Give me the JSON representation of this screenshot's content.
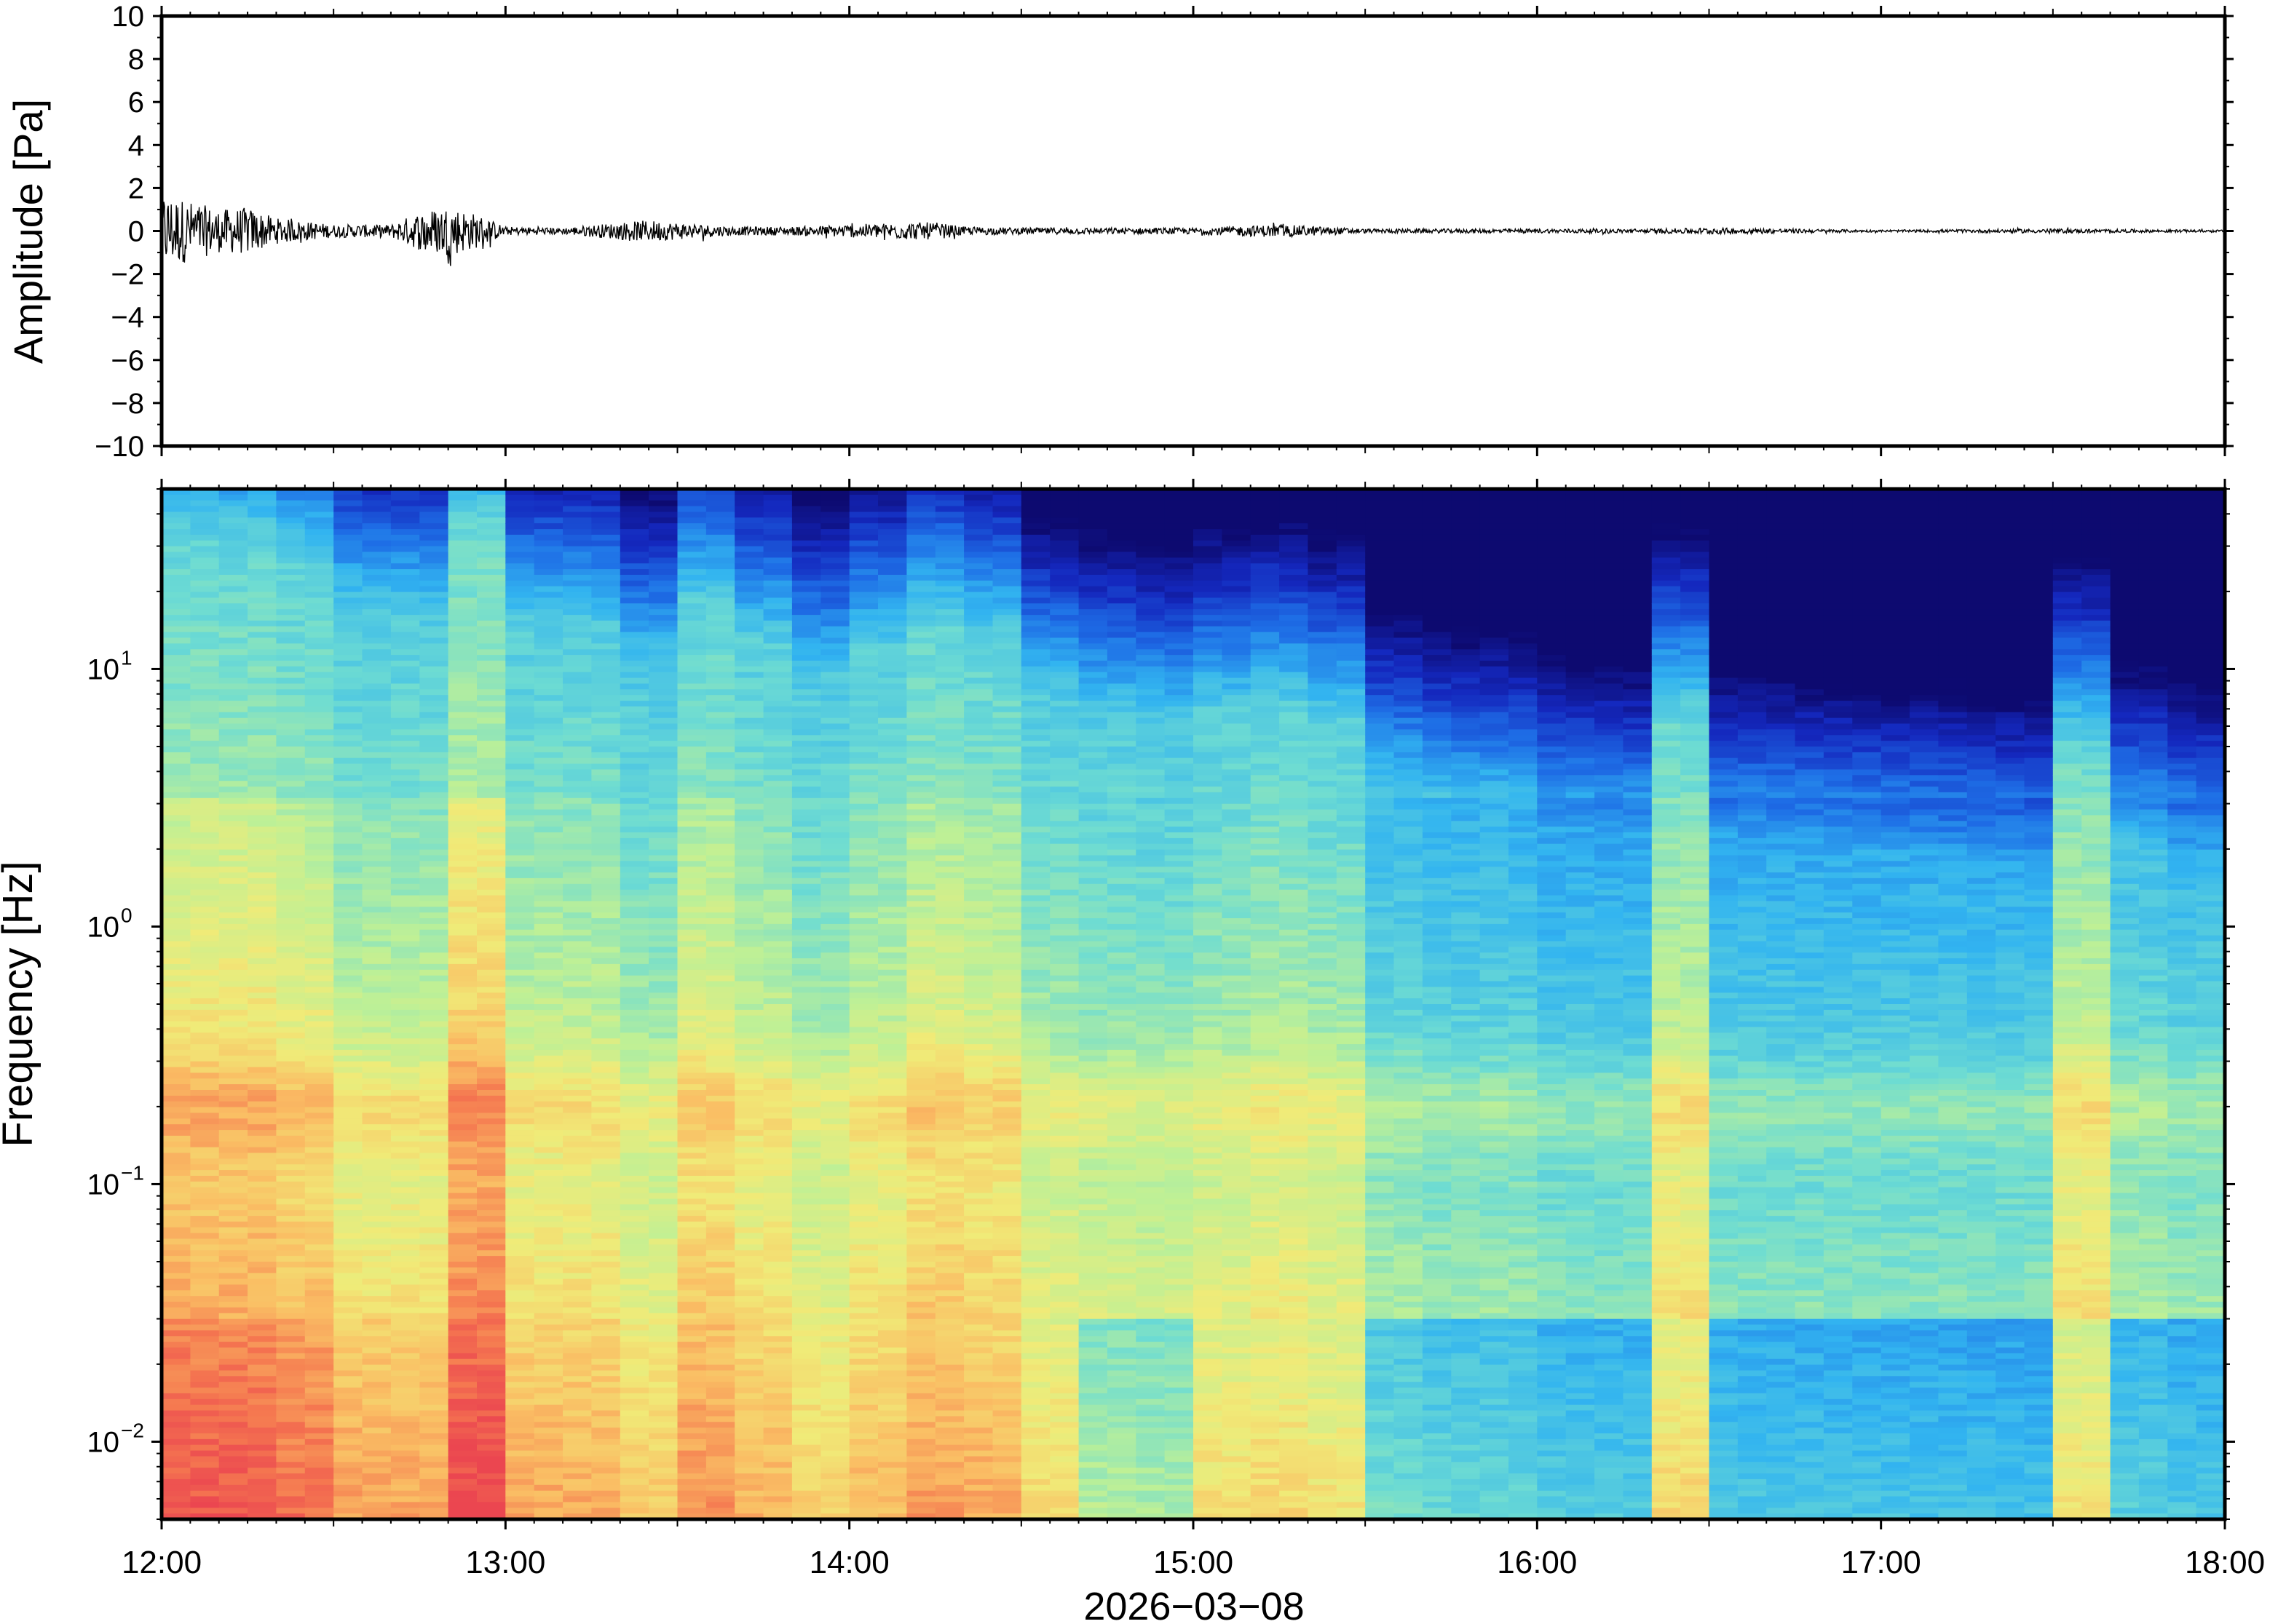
{
  "chart_data": [
    {
      "type": "line",
      "ylabel": "Amplitude [Pa]",
      "xlabel": "",
      "ylim": [
        -10,
        10
      ],
      "yticks": [
        10,
        8,
        6,
        4,
        2,
        0,
        -2,
        -4,
        -6,
        -8,
        -10
      ],
      "ytick_labels": [
        "10",
        "8",
        "6",
        "4",
        "2",
        "0",
        "−2",
        "−4",
        "−6",
        "−8",
        "−10"
      ],
      "xlim": [
        "12:00",
        "18:00"
      ],
      "units": "Pa",
      "grid": false,
      "series": [
        {
          "x": [
            "12:00",
            "12:10",
            "12:15",
            "12:20",
            "12:30",
            "12:40",
            "12:45",
            "12:50",
            "12:55",
            "13:00",
            "13:10",
            "13:20",
            "13:25",
            "13:30",
            "13:40",
            "13:50",
            "14:00",
            "14:10",
            "14:15",
            "14:20",
            "14:30",
            "15:00",
            "15:15",
            "15:30",
            "16:00",
            "16:20",
            "16:30",
            "17:00",
            "17:30",
            "18:00"
          ],
          "envelope": [
            1.8,
            1.0,
            1.1,
            0.6,
            0.3,
            0.3,
            0.9,
            1.2,
            0.8,
            0.2,
            0.15,
            0.4,
            0.5,
            0.4,
            0.2,
            0.2,
            0.3,
            0.4,
            0.4,
            0.2,
            0.15,
            0.15,
            0.3,
            0.1,
            0.1,
            0.1,
            0.15,
            0.05,
            0.1,
            0.05
          ],
          "color": "#000000"
        }
      ]
    },
    {
      "type": "heatmap",
      "ylabel": "Frequency [Hz]",
      "xlabel": "2026−03−08",
      "yscale": "log",
      "ylim": [
        0.005,
        50
      ],
      "yticks": [
        "10^1",
        "10^0",
        "10^−1",
        "10^−2"
      ],
      "ytick_labels": [
        {
          "base": "10",
          "exp": "1"
        },
        {
          "base": "10",
          "exp": "0"
        },
        {
          "base": "10",
          "exp": "−1"
        },
        {
          "base": "10",
          "exp": "−2"
        }
      ],
      "xticks": [
        "12:00",
        "13:00",
        "14:00",
        "15:00",
        "16:00",
        "17:00",
        "18:00"
      ],
      "xlim": [
        "12:00",
        "18:00"
      ],
      "colormap": "jet",
      "colors": {
        "low": "#0d0a70",
        "mid": "#7fdf9f",
        "high": "#f05050"
      },
      "grid": false,
      "z_relative": {
        "time_columns": [
          "12:00",
          "12:10",
          "12:20",
          "12:30",
          "12:40",
          "12:50",
          "13:00",
          "13:10",
          "13:20",
          "13:30",
          "13:40",
          "13:50",
          "14:00",
          "14:10",
          "14:20",
          "14:30",
          "14:40",
          "14:50",
          "15:00",
          "15:10",
          "15:20",
          "15:30",
          "15:40",
          "15:50",
          "16:00",
          "16:10",
          "16:20",
          "16:30",
          "16:40",
          "16:50",
          "17:00",
          "17:10",
          "17:20",
          "17:30",
          "17:40",
          "17:50"
        ],
        "column_boost": [
          0.15,
          0.15,
          0.12,
          0.05,
          0.05,
          0.2,
          0.05,
          0.05,
          0.0,
          0.1,
          0.05,
          0.0,
          0.05,
          0.1,
          0.08,
          0.0,
          -0.02,
          -0.03,
          0.0,
          0.02,
          0.0,
          -0.1,
          -0.12,
          -0.12,
          -0.15,
          -0.15,
          0.05,
          -0.15,
          -0.15,
          -0.15,
          -0.15,
          -0.15,
          -0.15,
          0.05,
          -0.1,
          -0.12
        ]
      }
    }
  ],
  "colors": {
    "axis": "#000000",
    "trace": "#000000",
    "background": "#ffffff"
  }
}
